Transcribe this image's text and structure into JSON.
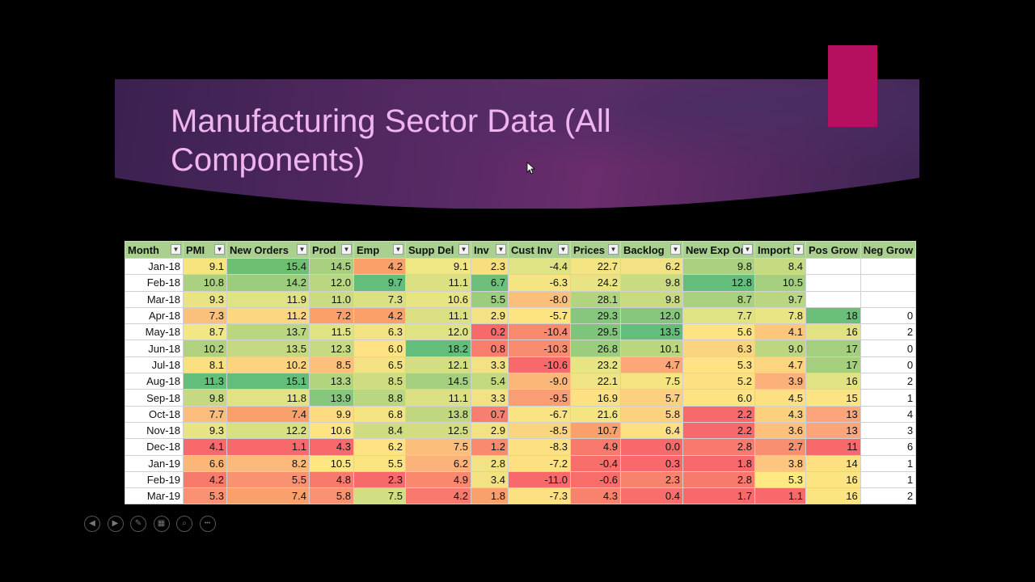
{
  "slide": {
    "title": "Manufacturing Sector Data (All Components)"
  },
  "table": {
    "columns": [
      "Month",
      "PMI",
      "New Orders",
      "Prod",
      "Emp",
      "Supp Del",
      "Inv",
      "Cust Inv",
      "Prices",
      "Backlog",
      "New Exp Or",
      "Import",
      "Pos Grow",
      "Neg Grow"
    ],
    "rows": [
      [
        "Jan-18",
        "9.1",
        "15.4",
        "14.5",
        "4.2",
        "9.1",
        "2.3",
        "-4.4",
        "22.7",
        "6.2",
        "9.8",
        "8.4",
        "",
        ""
      ],
      [
        "Feb-18",
        "10.8",
        "14.2",
        "12.0",
        "9.7",
        "11.1",
        "6.7",
        "-6.3",
        "24.2",
        "9.8",
        "12.8",
        "10.5",
        "",
        ""
      ],
      [
        "Mar-18",
        "9.3",
        "11.9",
        "11.0",
        "7.3",
        "10.6",
        "5.5",
        "-8.0",
        "28.1",
        "9.8",
        "8.7",
        "9.7",
        "",
        ""
      ],
      [
        "Apr-18",
        "7.3",
        "11.2",
        "7.2",
        "4.2",
        "11.1",
        "2.9",
        "-5.7",
        "29.3",
        "12.0",
        "7.7",
        "7.8",
        "18",
        "0"
      ],
      [
        "May-18",
        "8.7",
        "13.7",
        "11.5",
        "6.3",
        "12.0",
        "0.2",
        "-10.4",
        "29.5",
        "13.5",
        "5.6",
        "4.1",
        "16",
        "2"
      ],
      [
        "Jun-18",
        "10.2",
        "13.5",
        "12.3",
        "6.0",
        "18.2",
        "0.8",
        "-10.3",
        "26.8",
        "10.1",
        "6.3",
        "9.0",
        "17",
        "0"
      ],
      [
        "Jul-18",
        "8.1",
        "10.2",
        "8.5",
        "6.5",
        "12.1",
        "3.3",
        "-10.6",
        "23.2",
        "4.7",
        "5.3",
        "4.7",
        "17",
        "0"
      ],
      [
        "Aug-18",
        "11.3",
        "15.1",
        "13.3",
        "8.5",
        "14.5",
        "5.4",
        "-9.0",
        "22.1",
        "7.5",
        "5.2",
        "3.9",
        "16",
        "2"
      ],
      [
        "Sep-18",
        "9.8",
        "11.8",
        "13.9",
        "8.8",
        "11.1",
        "3.3",
        "-9.5",
        "16.9",
        "5.7",
        "6.0",
        "4.5",
        "15",
        "1"
      ],
      [
        "Oct-18",
        "7.7",
        "7.4",
        "9.9",
        "6.8",
        "13.8",
        "0.7",
        "-6.7",
        "21.6",
        "5.8",
        "2.2",
        "4.3",
        "13",
        "4"
      ],
      [
        "Nov-18",
        "9.3",
        "12.2",
        "10.6",
        "8.4",
        "12.5",
        "2.9",
        "-8.5",
        "10.7",
        "6.4",
        "2.2",
        "3.6",
        "13",
        "3"
      ],
      [
        "Dec-18",
        "4.1",
        "1.1",
        "4.3",
        "6.2",
        "7.5",
        "1.2",
        "-8.3",
        "4.9",
        "0.0",
        "2.8",
        "2.7",
        "11",
        "6"
      ],
      [
        "Jan-19",
        "6.6",
        "8.2",
        "10.5",
        "5.5",
        "6.2",
        "2.8",
        "-7.2",
        "-0.4",
        "0.3",
        "1.8",
        "3.8",
        "14",
        "1"
      ],
      [
        "Feb-19",
        "4.2",
        "5.5",
        "4.8",
        "2.3",
        "4.9",
        "3.4",
        "-11.0",
        "-0.6",
        "2.3",
        "2.8",
        "5.3",
        "16",
        "1"
      ],
      [
        "Mar-19",
        "5.3",
        "7.4",
        "5.8",
        "7.5",
        "4.2",
        "1.8",
        "-7.3",
        "4.3",
        "0.4",
        "1.7",
        "1.1",
        "16",
        "2"
      ]
    ],
    "colors": [
      [
        "#fff",
        "#f7e47f",
        "#6fbf73",
        "#a8d080",
        "#f9a06b",
        "#f1e784",
        "#f7df80",
        "#dfe383",
        "#f4e582",
        "#f2e283",
        "#a9d17f",
        "#c6da81",
        "#fff",
        "#fff"
      ],
      [
        "#fff",
        "#a9d17f",
        "#9ccc7d",
        "#b9d680",
        "#63be7b",
        "#dbe182",
        "#6cc07a",
        "#f5e582",
        "#e8e483",
        "#c9db81",
        "#63be7b",
        "#a3cf7e",
        "#fff",
        "#fff"
      ],
      [
        "#fff",
        "#e8e483",
        "#dfe383",
        "#cbdb81",
        "#dbe182",
        "#e6e483",
        "#9ccc7d",
        "#fbbf7b",
        "#b3d47f",
        "#c9db81",
        "#a9d17f",
        "#b9d680",
        "#fff",
        "#fff"
      ],
      [
        "#fff",
        "#fbc07c",
        "#fcd680",
        "#f9a06b",
        "#f9a06b",
        "#dbe182",
        "#f3e283",
        "#fde482",
        "#86c67d",
        "#86c67d",
        "#dfe383",
        "#e9e583",
        "#6ac07a",
        "#fff"
      ],
      [
        "#fff",
        "#f1e784",
        "#b9d680",
        "#dfe383",
        "#f3e283",
        "#dfe383",
        "#f8696b",
        "#f98a6f",
        "#7fc47c",
        "#63be7b",
        "#fee383",
        "#fcc77d",
        "#e0e283",
        "#fff"
      ],
      [
        "#fff",
        "#b0d27f",
        "#c4d981",
        "#c6da81",
        "#fee283",
        "#63be7b",
        "#f87d6d",
        "#f98b6f",
        "#9ccc7d",
        "#bad780",
        "#fcd37f",
        "#bcd780",
        "#a3cf7e",
        "#fff"
      ],
      [
        "#fff",
        "#f9df80",
        "#fed37f",
        "#fbc07c",
        "#f2e283",
        "#d3dd81",
        "#f2e283",
        "#f8696b",
        "#e6e483",
        "#fca77a",
        "#fee283",
        "#fdd47f",
        "#a3cf7e",
        "#fff"
      ],
      [
        "#fff",
        "#63be7b",
        "#63be7b",
        "#b3d47f",
        "#cfdc81",
        "#a3cf7e",
        "#c3d980",
        "#fbb778",
        "#f0e383",
        "#f5e582",
        "#fde082",
        "#fcb07a",
        "#e0e283",
        "#fff"
      ],
      [
        "#fff",
        "#c4d981",
        "#e0e283",
        "#86c67d",
        "#b9d680",
        "#dbe182",
        "#f2e283",
        "#f99e73",
        "#fde082",
        "#fcd07e",
        "#fde482",
        "#fde082",
        "#fde482",
        "#fff"
      ],
      [
        "#fff",
        "#fcbc7b",
        "#f9a06b",
        "#feda81",
        "#f5e582",
        "#c0d780",
        "#f87e6f",
        "#f9e382",
        "#f4e582",
        "#fcd27f",
        "#f8696b",
        "#fdd07e",
        "#fca47a",
        "#fff"
      ],
      [
        "#fff",
        "#e8e483",
        "#d9e082",
        "#fde382",
        "#cfdc81",
        "#d2dd81",
        "#f3e283",
        "#f8d57e",
        "#f9a06b",
        "#fde082",
        "#f8696b",
        "#fdc17c",
        "#fca47a",
        "#fff"
      ],
      [
        "#fff",
        "#f8696b",
        "#f8696b",
        "#f8696b",
        "#fee283",
        "#fbbf7b",
        "#f98a6f",
        "#fde082",
        "#f87a6c",
        "#f8696b",
        "#f87a6c",
        "#f98f71",
        "#f8696b",
        "#fff"
      ],
      [
        "#fff",
        "#fbb778",
        "#fbba7b",
        "#fee783",
        "#fbe482",
        "#fcb27a",
        "#f2e283",
        "#fde082",
        "#f86f6a",
        "#f8696b",
        "#f8696b",
        "#fdc57d",
        "#fce082",
        "#fff"
      ],
      [
        "#fff",
        "#f87a6c",
        "#f99272",
        "#f87a6c",
        "#f8696b",
        "#f9886f",
        "#f3e283",
        "#f8696b",
        "#f86c6a",
        "#f8836d",
        "#f87a6c",
        "#fee983",
        "#fde482",
        "#fff"
      ],
      [
        "#fff",
        "#f99272",
        "#f9a06b",
        "#f99272",
        "#d3dd81",
        "#f87a6c",
        "#f9a06b",
        "#fde082",
        "#f8836d",
        "#f86e6a",
        "#f8696b",
        "#f8696b",
        "#fde482",
        "#fff"
      ]
    ]
  },
  "controls": [
    "previous-icon",
    "next-icon",
    "pen-icon",
    "slides-icon",
    "zoom-icon",
    "more-icon"
  ]
}
